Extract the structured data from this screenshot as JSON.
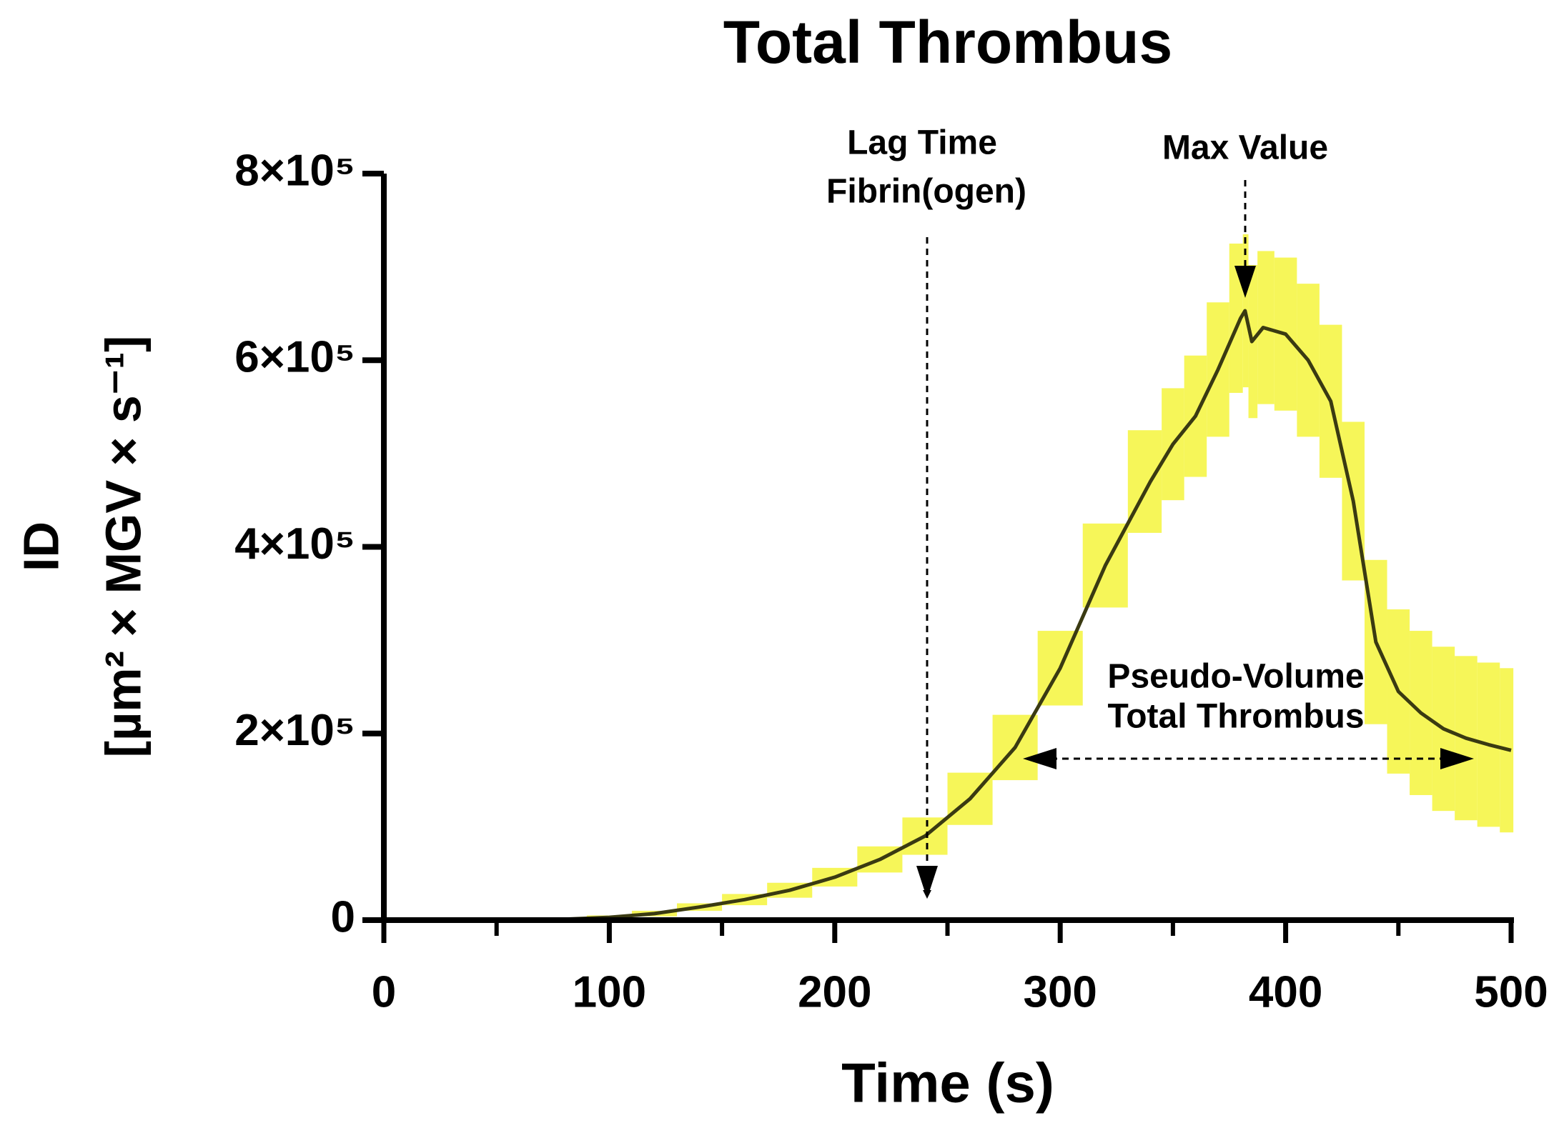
{
  "chart_data": {
    "type": "line",
    "title": "Total Thrombus",
    "x_label": "Time (s)",
    "y_label": [
      "ID",
      "[µm² × MGV × s⁻¹]"
    ],
    "x": [
      55,
      80,
      100,
      120,
      140,
      160,
      180,
      200,
      220,
      240,
      260,
      280,
      300,
      320,
      340,
      350,
      360,
      370,
      380,
      382,
      385,
      390,
      400,
      410,
      420,
      430,
      440,
      450,
      460,
      470,
      480,
      490,
      500
    ],
    "values": [
      0,
      1000,
      3000,
      7000,
      14000,
      22000,
      32000,
      46000,
      65000,
      90000,
      130000,
      185000,
      270000,
      380000,
      470000,
      510000,
      540000,
      590000,
      645000,
      653000,
      620000,
      635000,
      628000,
      600000,
      556000,
      449000,
      298000,
      245000,
      222000,
      205000,
      195000,
      188000,
      182000
    ],
    "errors": [
      0,
      1000,
      2000,
      3000,
      4000,
      6000,
      8000,
      10000,
      14000,
      20000,
      28000,
      35000,
      40000,
      45000,
      55000,
      60000,
      65000,
      72000,
      80000,
      82000,
      82000,
      82000,
      82000,
      82000,
      82000,
      85000,
      88000,
      88000,
      88000,
      88000,
      88000,
      88000,
      88000
    ],
    "color": "#3a3a12",
    "band_color": "#f4f43c",
    "xlim": [
      0,
      500
    ],
    "xticks": [
      0,
      100,
      200,
      300,
      400,
      500
    ],
    "ylim": [
      0,
      800000
    ],
    "yticks": [
      0,
      {
        "value": 200000,
        "label": "2×10⁵"
      },
      {
        "value": 400000,
        "label": "4×10⁵"
      },
      {
        "value": 600000,
        "label": "6×10⁵"
      },
      {
        "value": 800000,
        "label": "8×10⁵"
      }
    ],
    "annotations": {
      "lag_time": [
        "Lag Time",
        "Fibrin(ogen)"
      ],
      "max_value": [
        "Max Value"
      ],
      "pseudo_volume": [
        "Pseudo-Volume",
        "Total Thrombus"
      ]
    }
  }
}
